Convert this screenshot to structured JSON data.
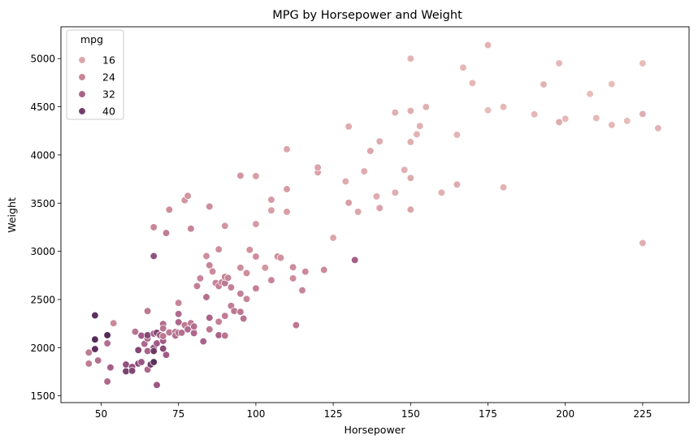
{
  "chart_data": {
    "type": "scatter",
    "title": "MPG by Horsepower and Weight",
    "xlabel": "Horsepower",
    "ylabel": "Weight",
    "xlim": [
      37,
      240
    ],
    "ylim": [
      1430,
      5330
    ],
    "xticks": [
      50,
      75,
      100,
      125,
      150,
      175,
      200,
      225
    ],
    "yticks": [
      1500,
      2000,
      2500,
      3000,
      3500,
      4000,
      4500,
      5000
    ],
    "grid": false,
    "legend": {
      "title": "mpg",
      "placement": "top-left",
      "entries": [
        {
          "label": "16",
          "value": 16
        },
        {
          "label": "24",
          "value": 24
        },
        {
          "label": "32",
          "value": 32
        },
        {
          "label": "40",
          "value": 40
        }
      ]
    },
    "hue": "mpg",
    "hue_range": [
      9,
      46.6
    ],
    "colors": {
      "low": "#ebc4bf",
      "mid_low": "#d08f9c",
      "mid_high": "#a15a87",
      "high": "#3f1f4c",
      "marker_edge": "#ffffff",
      "axes": "#000000"
    },
    "points": [
      [
        46,
        1835,
        26
      ],
      [
        46,
        1950,
        26
      ],
      [
        48,
        2335,
        43
      ],
      [
        48,
        2085,
        44
      ],
      [
        48,
        1985,
        43
      ],
      [
        49,
        1867,
        29
      ],
      [
        52,
        1649,
        31
      ],
      [
        52,
        2045,
        29
      ],
      [
        52,
        2130,
        44
      ],
      [
        53,
        1795,
        33
      ],
      [
        54,
        2254,
        23
      ],
      [
        58,
        1755,
        39
      ],
      [
        58,
        1825,
        36
      ],
      [
        60,
        1800,
        36
      ],
      [
        60,
        1760,
        38
      ],
      [
        61,
        2165,
        28
      ],
      [
        62,
        1835,
        37
      ],
      [
        62,
        1975,
        38
      ],
      [
        63,
        1850,
        35
      ],
      [
        63,
        2125,
        34
      ],
      [
        64,
        2040,
        31
      ],
      [
        65,
        1773,
        31
      ],
      [
        65,
        1965,
        32
      ],
      [
        65,
        2380,
        27
      ],
      [
        65,
        2095,
        30
      ],
      [
        65,
        2130,
        38
      ],
      [
        66,
        1825,
        40
      ],
      [
        67,
        1850,
        43
      ],
      [
        67,
        2000,
        35
      ],
      [
        67,
        1965,
        41
      ],
      [
        67,
        2145,
        32
      ],
      [
        67,
        3250,
        24
      ],
      [
        67,
        2950,
        36
      ],
      [
        68,
        1613,
        35
      ],
      [
        68,
        2045,
        34
      ],
      [
        68,
        2155,
        38
      ],
      [
        69,
        2130,
        33
      ],
      [
        70,
        1990,
        37
      ],
      [
        70,
        2070,
        34
      ],
      [
        70,
        2245,
        30
      ],
      [
        70,
        2200,
        28
      ],
      [
        70,
        2120,
        27
      ],
      [
        71,
        1925,
        34
      ],
      [
        71,
        3190,
        26
      ],
      [
        72,
        2158,
        27
      ],
      [
        72,
        3432,
        22
      ],
      [
        74,
        2164,
        27
      ],
      [
        74,
        2125,
        29
      ],
      [
        75,
        2155,
        29
      ],
      [
        75,
        2265,
        31
      ],
      [
        75,
        2464,
        24
      ],
      [
        75,
        2350,
        30
      ],
      [
        76,
        2155,
        29
      ],
      [
        77,
        2234,
        26
      ],
      [
        77,
        3530,
        20
      ],
      [
        78,
        2190,
        30
      ],
      [
        78,
        3575,
        20
      ],
      [
        79,
        2255,
        26
      ],
      [
        79,
        3235,
        24
      ],
      [
        80,
        2165,
        30
      ],
      [
        80,
        2151,
        31
      ],
      [
        80,
        2220,
        29
      ],
      [
        81,
        2640,
        25
      ],
      [
        82,
        2720,
        24
      ],
      [
        83,
        2065,
        32
      ],
      [
        84,
        2950,
        22
      ],
      [
        84,
        2525,
        29
      ],
      [
        85,
        2190,
        27
      ],
      [
        85,
        2310,
        32
      ],
      [
        85,
        2855,
        24
      ],
      [
        85,
        3465,
        22
      ],
      [
        86,
        2790,
        23
      ],
      [
        87,
        2672,
        24
      ],
      [
        88,
        2130,
        32
      ],
      [
        88,
        2270,
        25
      ],
      [
        88,
        2640,
        25
      ],
      [
        88,
        3020,
        22
      ],
      [
        89,
        2678,
        24
      ],
      [
        90,
        2125,
        28
      ],
      [
        90,
        2330,
        26
      ],
      [
        90,
        2670,
        27
      ],
      [
        90,
        2735,
        24
      ],
      [
        90,
        3264,
        20
      ],
      [
        91,
        2725,
        24
      ],
      [
        92,
        2434,
        26
      ],
      [
        92,
        2625,
        25
      ],
      [
        93,
        2380,
        27
      ],
      [
        95,
        2372,
        27
      ],
      [
        95,
        2560,
        25
      ],
      [
        95,
        2830,
        22
      ],
      [
        95,
        3785,
        20
      ],
      [
        96,
        2302,
        28
      ],
      [
        97,
        2506,
        24
      ],
      [
        97,
        2774,
        22
      ],
      [
        98,
        3015,
        21
      ],
      [
        100,
        2615,
        25
      ],
      [
        100,
        2945,
        22
      ],
      [
        100,
        3282,
        19
      ],
      [
        100,
        3781,
        18
      ],
      [
        103,
        2830,
        20
      ],
      [
        105,
        3535,
        19
      ],
      [
        105,
        2700,
        24
      ],
      [
        105,
        3425,
        18
      ],
      [
        107,
        2945,
        22
      ],
      [
        108,
        2933,
        21
      ],
      [
        110,
        3410,
        18
      ],
      [
        110,
        3645,
        19
      ],
      [
        110,
        4060,
        16
      ],
      [
        112,
        2720,
        22
      ],
      [
        112,
        2835,
        22
      ],
      [
        113,
        2234,
        27
      ],
      [
        115,
        2595,
        24
      ],
      [
        116,
        2789,
        23
      ],
      [
        120,
        3820,
        17
      ],
      [
        120,
        3870,
        17
      ],
      [
        122,
        2807,
        23
      ],
      [
        125,
        3140,
        16
      ],
      [
        129,
        3725,
        15
      ],
      [
        130,
        3504,
        18
      ],
      [
        130,
        4295,
        15
      ],
      [
        132,
        2910,
        33
      ],
      [
        133,
        3410,
        16
      ],
      [
        135,
        3830,
        15
      ],
      [
        137,
        4042,
        16
      ],
      [
        139,
        3570,
        15
      ],
      [
        140,
        3449,
        17
      ],
      [
        140,
        4141,
        15
      ],
      [
        145,
        3609,
        14
      ],
      [
        145,
        4440,
        14
      ],
      [
        148,
        3845,
        14
      ],
      [
        150,
        3433,
        16
      ],
      [
        150,
        3761,
        15
      ],
      [
        150,
        4135,
        14
      ],
      [
        150,
        4457,
        14
      ],
      [
        150,
        5000,
        13
      ],
      [
        152,
        4215,
        13
      ],
      [
        153,
        4300,
        14
      ],
      [
        155,
        4498,
        14
      ],
      [
        160,
        3609,
        14
      ],
      [
        165,
        3693,
        15
      ],
      [
        165,
        4209,
        13
      ],
      [
        167,
        4906,
        12
      ],
      [
        170,
        4746,
        12
      ],
      [
        175,
        4464,
        11
      ],
      [
        175,
        5140,
        13
      ],
      [
        180,
        4499,
        12
      ],
      [
        180,
        3664,
        13
      ],
      [
        190,
        4422,
        12
      ],
      [
        193,
        4732,
        13
      ],
      [
        198,
        4952,
        12
      ],
      [
        198,
        4341,
        15
      ],
      [
        200,
        4376,
        12
      ],
      [
        208,
        4633,
        11
      ],
      [
        210,
        4382,
        12
      ],
      [
        215,
        4735,
        11
      ],
      [
        215,
        4312,
        12
      ],
      [
        220,
        4354,
        11
      ],
      [
        225,
        4951,
        11
      ],
      [
        225,
        3086,
        14
      ],
      [
        225,
        4425,
        14
      ],
      [
        230,
        4278,
        13
      ]
    ]
  }
}
